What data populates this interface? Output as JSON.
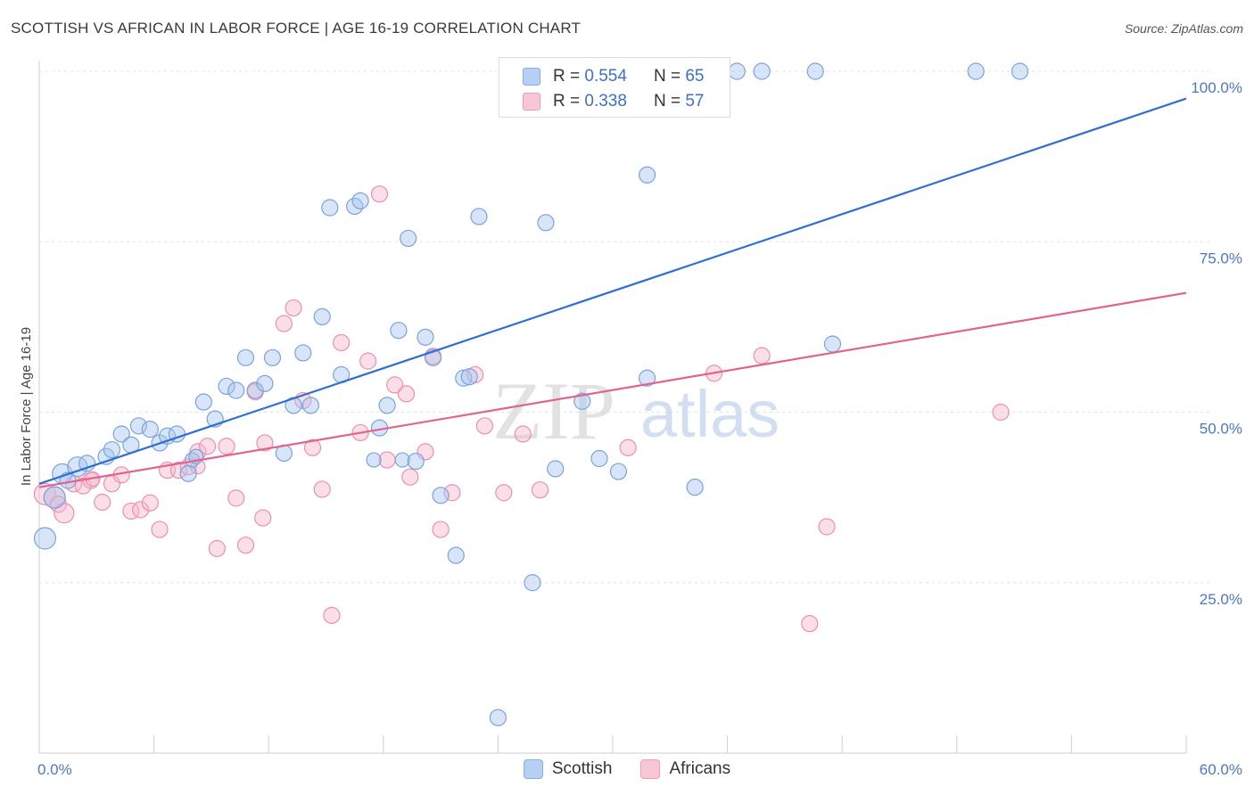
{
  "header": {
    "title": "SCOTTISH VS AFRICAN IN LABOR FORCE | AGE 16-19 CORRELATION CHART",
    "source": "Source: ZipAtlas.com"
  },
  "legend": {
    "rows": [
      {
        "r_label": "R =",
        "r_value": "0.554",
        "n_label": "N =",
        "n_value": "65"
      },
      {
        "r_label": "R =",
        "r_value": "0.338",
        "n_label": "N =",
        "n_value": "57"
      }
    ]
  },
  "bottom_legend": [
    "Scottish",
    "Africans"
  ],
  "watermark": {
    "zip": "ZIP",
    "atlas": "atlas"
  },
  "colors": {
    "scottish_fill": "#a9c6ef",
    "scottish_stroke": "#7aa3dd",
    "scottish_line": "#2f6fd0",
    "africans_fill": "#f7b8cc",
    "africans_stroke": "#ee8fae",
    "africans_line": "#e0648f",
    "axis_text": "#4a78c8"
  },
  "chart_data": {
    "type": "scatter",
    "title": "SCOTTISH VS AFRICAN IN LABOR FORCE | AGE 16-19 CORRELATION CHART",
    "xlabel": "",
    "ylabel": "In Labor Force | Age 16-19",
    "xlim": [
      0,
      60
    ],
    "ylim": [
      0,
      100
    ],
    "x_tick_labels": [
      "0.0%",
      "60.0%"
    ],
    "y_ticks": [
      25,
      50,
      75,
      100
    ],
    "y_tick_labels": [
      "25.0%",
      "50.0%",
      "75.0%",
      "100.0%"
    ],
    "grid": true,
    "series": [
      {
        "name": "Scottish",
        "r": 0.554,
        "n": 65,
        "trend": {
          "x": [
            0,
            60
          ],
          "y": [
            39.5,
            96
          ]
        },
        "points": [
          [
            0.3,
            31.5,
            12
          ],
          [
            0.8,
            37.5,
            12
          ],
          [
            1.2,
            41.0,
            11
          ],
          [
            1.5,
            40.0,
            9
          ],
          [
            2.0,
            42.0,
            11
          ],
          [
            2.5,
            42.5,
            9
          ],
          [
            3.5,
            43.5,
            9
          ],
          [
            3.8,
            44.5,
            9
          ],
          [
            4.3,
            46.8,
            9
          ],
          [
            4.8,
            45.2,
            9
          ],
          [
            5.2,
            48.0,
            9
          ],
          [
            5.8,
            47.5,
            9
          ],
          [
            6.3,
            45.5,
            9
          ],
          [
            6.7,
            46.5,
            9
          ],
          [
            7.2,
            46.8,
            9
          ],
          [
            7.8,
            41.0,
            9
          ],
          [
            8.0,
            43.0,
            8
          ],
          [
            8.2,
            43.5,
            8
          ],
          [
            8.6,
            51.5,
            9
          ],
          [
            9.2,
            49.0,
            9
          ],
          [
            9.8,
            53.8,
            9
          ],
          [
            10.3,
            53.2,
            9
          ],
          [
            10.8,
            58.0,
            9
          ],
          [
            11.3,
            53.2,
            9
          ],
          [
            11.8,
            54.2,
            9
          ],
          [
            12.2,
            58.0,
            9
          ],
          [
            12.8,
            44.0,
            9
          ],
          [
            13.3,
            51.0,
            9
          ],
          [
            13.8,
            58.7,
            9
          ],
          [
            14.2,
            51.0,
            9
          ],
          [
            14.8,
            64.0,
            9
          ],
          [
            15.2,
            80.0,
            9
          ],
          [
            15.8,
            55.5,
            9
          ],
          [
            16.5,
            80.2,
            9
          ],
          [
            16.8,
            81.0,
            9
          ],
          [
            17.8,
            47.7,
            9
          ],
          [
            17.5,
            43.0,
            8
          ],
          [
            18.2,
            51.0,
            9
          ],
          [
            18.8,
            62.0,
            9
          ],
          [
            19.0,
            43.0,
            8
          ],
          [
            19.3,
            75.5,
            9
          ],
          [
            19.7,
            42.8,
            9
          ],
          [
            20.2,
            61.0,
            9
          ],
          [
            20.6,
            58.0,
            9
          ],
          [
            21.0,
            37.8,
            9
          ],
          [
            21.8,
            29.0,
            9
          ],
          [
            22.2,
            55.0,
            9
          ],
          [
            22.5,
            55.2,
            9
          ],
          [
            23.0,
            78.7,
            9
          ],
          [
            24.0,
            5.2,
            9
          ],
          [
            25.8,
            25.0,
            9
          ],
          [
            26.5,
            77.8,
            9
          ],
          [
            27.0,
            41.7,
            9
          ],
          [
            28.4,
            51.6,
            9
          ],
          [
            29.3,
            43.2,
            9
          ],
          [
            30.3,
            41.3,
            9
          ],
          [
            31.8,
            55.0,
            9
          ],
          [
            31.8,
            84.8,
            9
          ],
          [
            34.3,
            39.0,
            9
          ],
          [
            36.5,
            100.0,
            9
          ],
          [
            37.8,
            100.0,
            9
          ],
          [
            40.6,
            100.0,
            9
          ],
          [
            41.5,
            60.0,
            9
          ],
          [
            49.0,
            100.0,
            9
          ],
          [
            51.3,
            100.0,
            9
          ]
        ]
      },
      {
        "name": "Africans",
        "r": 0.338,
        "n": 57,
        "trend": {
          "x": [
            0,
            60
          ],
          "y": [
            39.0,
            67.5
          ]
        },
        "points": [
          [
            0.3,
            38.0,
            12
          ],
          [
            0.8,
            37.5,
            12
          ],
          [
            1.0,
            36.5,
            9
          ],
          [
            1.3,
            35.2,
            11
          ],
          [
            1.8,
            39.5,
            9
          ],
          [
            2.3,
            39.2,
            9
          ],
          [
            2.7,
            40.0,
            9
          ],
          [
            3.3,
            36.8,
            9
          ],
          [
            3.8,
            39.5,
            9
          ],
          [
            4.3,
            40.8,
            9
          ],
          [
            4.8,
            35.5,
            9
          ],
          [
            5.3,
            35.7,
            9
          ],
          [
            5.8,
            36.7,
            9
          ],
          [
            6.3,
            32.8,
            9
          ],
          [
            6.7,
            41.5,
            9
          ],
          [
            7.3,
            41.5,
            9
          ],
          [
            7.8,
            42.0,
            9
          ],
          [
            8.3,
            44.2,
            9
          ],
          [
            8.8,
            45.0,
            9
          ],
          [
            9.3,
            30.0,
            9
          ],
          [
            9.8,
            45.0,
            9
          ],
          [
            10.3,
            37.4,
            9
          ],
          [
            10.8,
            30.5,
            9
          ],
          [
            11.3,
            53.0,
            9
          ],
          [
            11.7,
            34.5,
            9
          ],
          [
            11.8,
            45.5,
            9
          ],
          [
            12.8,
            63.0,
            9
          ],
          [
            13.3,
            65.3,
            9
          ],
          [
            13.8,
            51.7,
            9
          ],
          [
            14.3,
            44.8,
            9
          ],
          [
            14.8,
            38.7,
            9
          ],
          [
            15.3,
            20.2,
            9
          ],
          [
            15.8,
            60.2,
            9
          ],
          [
            16.8,
            47.0,
            9
          ],
          [
            17.2,
            57.5,
            9
          ],
          [
            17.8,
            82.0,
            9
          ],
          [
            18.2,
            43.0,
            9
          ],
          [
            18.6,
            54.0,
            9
          ],
          [
            19.2,
            52.7,
            9
          ],
          [
            19.4,
            40.5,
            9
          ],
          [
            20.2,
            44.2,
            9
          ],
          [
            20.6,
            58.2,
            9
          ],
          [
            21.0,
            32.8,
            9
          ],
          [
            21.6,
            38.2,
            9
          ],
          [
            22.8,
            55.5,
            9
          ],
          [
            23.3,
            48.0,
            9
          ],
          [
            24.3,
            38.2,
            9
          ],
          [
            25.3,
            46.8,
            9
          ],
          [
            26.2,
            38.6,
            9
          ],
          [
            30.8,
            44.8,
            9
          ],
          [
            35.3,
            55.7,
            9
          ],
          [
            37.8,
            58.3,
            9
          ],
          [
            40.3,
            19.0,
            9
          ],
          [
            41.2,
            33.2,
            9
          ],
          [
            50.3,
            50.0,
            9
          ],
          [
            8.3,
            42.0,
            8
          ],
          [
            2.8,
            40.2,
            8
          ]
        ]
      }
    ]
  }
}
